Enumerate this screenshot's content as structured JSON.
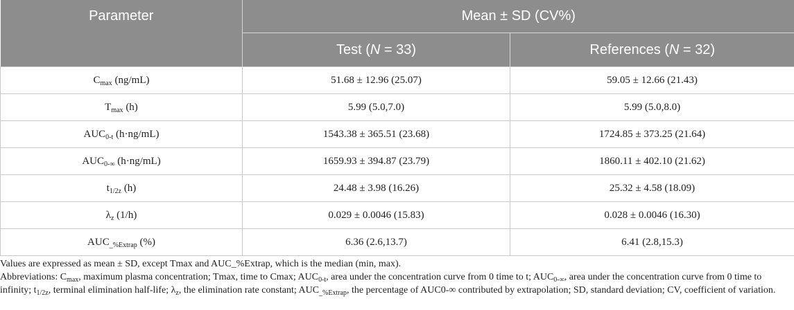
{
  "table": {
    "col_parameter": "Parameter",
    "col_group": "Mean ± SD (CV%)",
    "test": {
      "label": "Test (",
      "n_label": "N",
      "n_value": " = 33)"
    },
    "reference": {
      "label": "References (",
      "n_label": "N",
      "n_value": " = 32)"
    },
    "rows": [
      {
        "param": "C",
        "sub": "max",
        "unit": " (ng/mL)",
        "test": "51.68 ± 12.96 (25.07)",
        "ref": "59.05 ± 12.66 (21.43)"
      },
      {
        "param": "T",
        "sub": "max",
        "unit": " (h)",
        "test": "5.99 (5.0,7.0)",
        "ref": "5.99 (5.0,8.0)"
      },
      {
        "param": "AUC",
        "sub": "0-t",
        "unit": " (h·ng/mL)",
        "test": "1543.38 ± 365.51 (23.68)",
        "ref": "1724.85 ± 373.25 (21.64)"
      },
      {
        "param": "AUC",
        "sub": "0-∞",
        "unit": " (h·ng/mL)",
        "test": "1659.93 ± 394.87 (23.79)",
        "ref": "1860.11 ± 402.10 (21.62)"
      },
      {
        "param": "t",
        "sub": "1/2z",
        "unit": " (h)",
        "test": "24.48 ± 3.98 (16.26)",
        "ref": "25.32 ± 4.58 (18.09)"
      },
      {
        "param": "λ",
        "sub": "z",
        "unit": " (1/h)",
        "test": "0.029 ± 0.0046 (15.83)",
        "ref": "0.028 ± 0.0046 (16.30)"
      },
      {
        "param": "AUC",
        "sub": "_%Extrap",
        "unit": " (%)",
        "test": "6.36 (2.6,13.7)",
        "ref": "6.41 (2.8,15.3)"
      }
    ]
  },
  "footnotes": {
    "values_note": "Values are expressed as mean ± SD, except Tmax and AUC_%Extrap, which is the median (min, max).",
    "abbrev": {
      "p1": "Abbreviations: C",
      "s1": "max",
      "p2": ", maximum plasma concentration; Tmax, time to Cmax; AUC",
      "s2": "0-t",
      "p3": ", area under the concentration curve from 0 time to t; AUC",
      "s3": "0-∞",
      "p4": ", area under the concentration curve from 0 time to infinity; t",
      "s4": "1/2z",
      "p5": ", terminal elimination half-life; λ",
      "s5": "z",
      "p6": ", the elimination rate constant; AUC",
      "s6": "_%Extrap",
      "p7": ", the percentage of AUC0-∞ contributed by extrapolation; SD, standard deviation; CV, coefficient of variation."
    }
  }
}
